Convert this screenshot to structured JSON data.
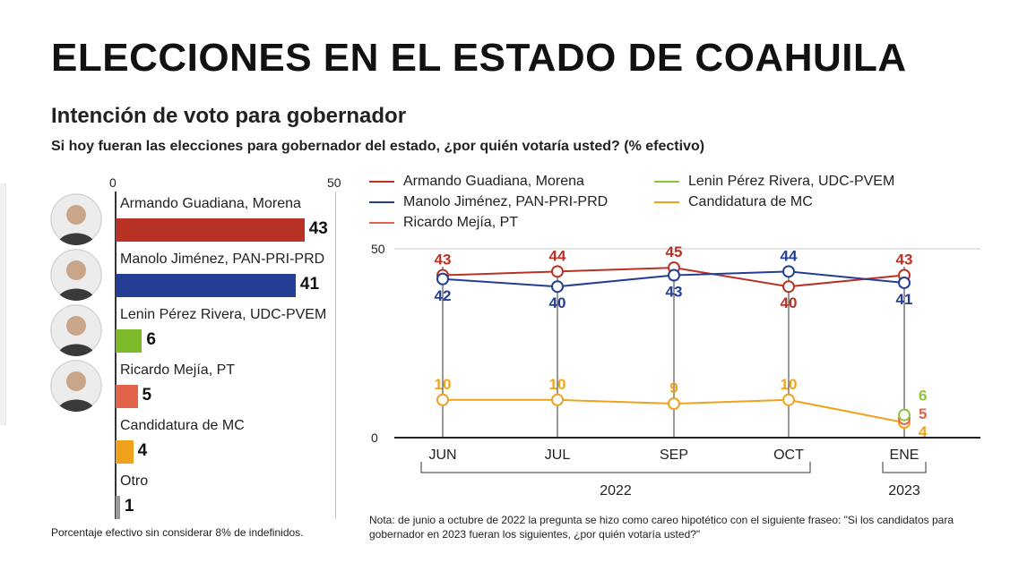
{
  "header": {
    "title": "ELECCIONES EN EL ESTADO DE COAHUILA",
    "subtitle": "Intención de voto para gobernador",
    "question": "Si hoy fueran las elecciones para gobernador del estado, ¿por quién votaría usted? (% efectivo)"
  },
  "chart_data": [
    {
      "type": "bar",
      "orientation": "horizontal",
      "xlim": [
        0,
        50
      ],
      "ticks": [
        "0",
        "50"
      ],
      "categories": [
        "Armando Guadiana, Morena",
        "Manolo Jiménez, PAN-PRI-PRD",
        "Lenin Pérez Rivera, UDC-PVEM",
        "Ricardo Mejía, PT",
        "Candidatura de MC",
        "Otro"
      ],
      "values": [
        43,
        41,
        6,
        5,
        4,
        1
      ],
      "labels": [
        "43",
        "41",
        "6",
        "5",
        "4",
        "1"
      ],
      "colors": [
        "#b83226",
        "#243e94",
        "#7cba2c",
        "#e0634a",
        "#f0a21c",
        "#9a9a9a"
      ],
      "note": "Porcentaje efectivo sin considerar 8% de indefinidos."
    },
    {
      "type": "line",
      "categories": [
        "JUN",
        "JUL",
        "SEP",
        "OCT",
        "ENE"
      ],
      "year_groups": [
        {
          "label": "2022",
          "from": 0,
          "to": 3
        },
        {
          "label": "2023",
          "from": 4,
          "to": 4
        }
      ],
      "ylim": [
        0,
        50
      ],
      "yticks": [
        "0",
        "50"
      ],
      "legend": [
        "Armando Guadiana, Morena",
        "Manolo Jiménez, PAN-PRI-PRD",
        "Ricardo Mejía, PT",
        "Lenin Pérez Rivera, UDC-PVEM",
        "Candidatura de MC"
      ],
      "legend_colors": [
        "#b83226",
        "#243e94",
        "#e0634a",
        "#8cc43a",
        "#f0a21c"
      ],
      "series": [
        {
          "name": "Armando Guadiana, Morena",
          "color": "#b83226",
          "values": [
            43,
            44,
            45,
            40,
            43
          ],
          "labels": [
            "43",
            "44",
            "45",
            "40",
            "43"
          ],
          "label_pos": [
            "above",
            "above",
            "above",
            "below",
            "above"
          ]
        },
        {
          "name": "Manolo Jiménez, PAN-PRI-PRD",
          "color": "#243e94",
          "values": [
            42,
            40,
            43,
            44,
            41
          ],
          "labels": [
            "42",
            "40",
            "43",
            "44",
            "41"
          ],
          "label_pos": [
            "below",
            "below",
            "below",
            "above",
            "below"
          ]
        },
        {
          "name": "Candidatura de MC",
          "color": "#f0a21c",
          "values": [
            10,
            10,
            9,
            10,
            4
          ],
          "labels": [
            "10",
            "10",
            "9",
            "10",
            "4"
          ],
          "label_pos": [
            "above",
            "above",
            "above",
            "above",
            "right"
          ]
        },
        {
          "name": "Ricardo Mejía, PT",
          "color": "#e0634a",
          "values": [
            null,
            null,
            null,
            null,
            5
          ],
          "labels": [
            "",
            "",
            "",
            "",
            "5"
          ],
          "label_pos": [
            "",
            "",
            "",
            "",
            "right"
          ]
        },
        {
          "name": "Lenin Pérez Rivera, UDC-PVEM",
          "color": "#8cc43a",
          "values": [
            null,
            null,
            null,
            null,
            6
          ],
          "labels": [
            "",
            "",
            "",
            "",
            "6"
          ],
          "label_pos": [
            "",
            "",
            "",
            "",
            "right"
          ]
        }
      ],
      "note": "Nota: de junio a octubre de 2022 la pregunta se hizo como careo hipotético con el siguiente fraseo: \"Si los candidatos para gobernador en 2023 fueran los siguientes, ¿por quién votaría usted?\""
    }
  ]
}
